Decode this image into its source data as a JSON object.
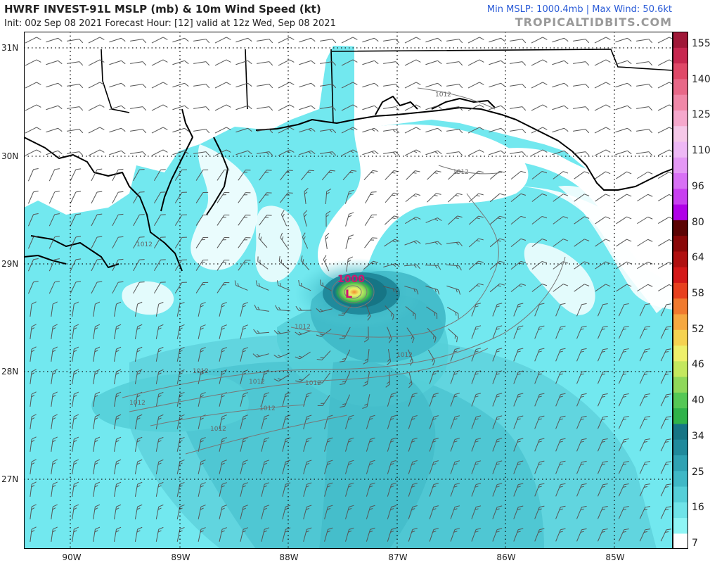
{
  "header": {
    "title": "HWRF INVEST-91L MSLP (mb) & 10m Wind Speed (kt)",
    "subtitle": "Init: 00z Sep 08 2021   Forecast Hour: [12]   valid at 12z Wed, Sep 08 2021",
    "stats_min": "Min MSLP: 1000.4mb",
    "stats_sep": " | ",
    "stats_max": "Max Wind: 50.6kt",
    "credit": "TROPICALTIDBITS.COM"
  },
  "axes": {
    "lat_labels": [
      "31N",
      "30N",
      "29N",
      "28N",
      "27N"
    ],
    "lon_labels": [
      "90W",
      "89W",
      "88W",
      "87W",
      "86W",
      "85W"
    ]
  },
  "isobars": {
    "center_label": "1000",
    "low_symbol": "L",
    "contour_labels": [
      "1012",
      "1012",
      "1012",
      "1012",
      "1012",
      "1012",
      "1012",
      "1012",
      "1012",
      "1012",
      "1012"
    ]
  },
  "colorbar": {
    "labels": [
      "155",
      "140",
      "125",
      "110",
      "96",
      "80",
      "64",
      "58",
      "52",
      "46",
      "40",
      "34",
      "25",
      "16",
      "7"
    ],
    "colors": [
      "#ffffff",
      "#8ff5f5",
      "#6fe3e8",
      "#55cfd8",
      "#3fb8c6",
      "#2fa2b3",
      "#208a9c",
      "#167585",
      "#2fb34a",
      "#55c855",
      "#8fd85a",
      "#c4e85e",
      "#eef06a",
      "#f5d250",
      "#f5a840",
      "#f07a2e",
      "#e8401e",
      "#d41818",
      "#b01010",
      "#8a0808",
      "#5c0404",
      "#b000e8",
      "#c83ff0",
      "#d870f5",
      "#e498f5",
      "#eeb8f5",
      "#f5c8e8",
      "#f5a8cc",
      "#f088a8",
      "#e86888",
      "#e04868",
      "#c82850",
      "#a01838"
    ]
  },
  "colors": {
    "ocean_base": "#72e8ef",
    "land": "#ffffff",
    "coast": "#000000",
    "barb": "#555555",
    "isobar": "#777777",
    "low_marker": "#d0146e"
  }
}
